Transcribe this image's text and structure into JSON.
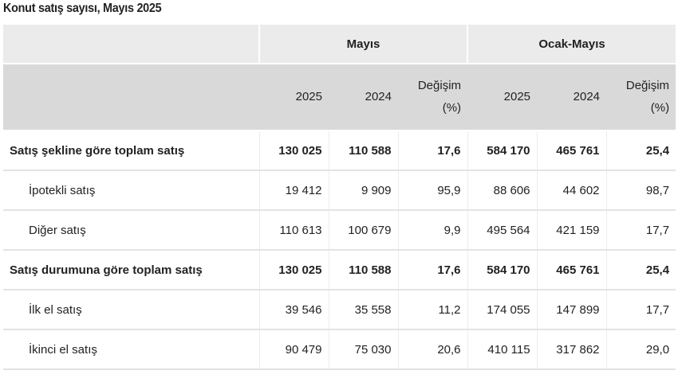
{
  "title": "Konut satış sayısı, Mayıs 2025",
  "groups": {
    "may": "Mayıs",
    "jan_may": "Ocak-Mayıs"
  },
  "subheaders": {
    "may_2025": "2025",
    "may_2024": "2024",
    "may_change_line1": "Değişim",
    "may_change_line2": "(%)",
    "jm_2025": "2025",
    "jm_2024": "2024",
    "jm_change_line1": "Değişim",
    "jm_change_line2": "(%)"
  },
  "rows": [
    {
      "label": "Satış şekline göre toplam satış",
      "kind": "total",
      "values": [
        "130 025",
        "110 588",
        "17,6",
        "584 170",
        "465 761",
        "25,4"
      ]
    },
    {
      "label": "İpotekli satış",
      "kind": "sub",
      "values": [
        "19 412",
        "9 909",
        "95,9",
        "88 606",
        "44 602",
        "98,7"
      ]
    },
    {
      "label": "Diğer satış",
      "kind": "sub",
      "values": [
        "110 613",
        "100 679",
        "9,9",
        "495 564",
        "421 159",
        "17,7"
      ]
    },
    {
      "label": "Satış durumuna göre toplam satış",
      "kind": "total",
      "values": [
        "130 025",
        "110 588",
        "17,6",
        "584 170",
        "465 761",
        "25,4"
      ]
    },
    {
      "label": "İlk el satış",
      "kind": "sub",
      "values": [
        "39 546",
        "35 558",
        "11,2",
        "174 055",
        "147 899",
        "17,7"
      ]
    },
    {
      "label": "İkinci el satış",
      "kind": "sub",
      "values": [
        "90 479",
        "75 030",
        "20,6",
        "410 115",
        "317 862",
        "29,0"
      ]
    }
  ]
}
